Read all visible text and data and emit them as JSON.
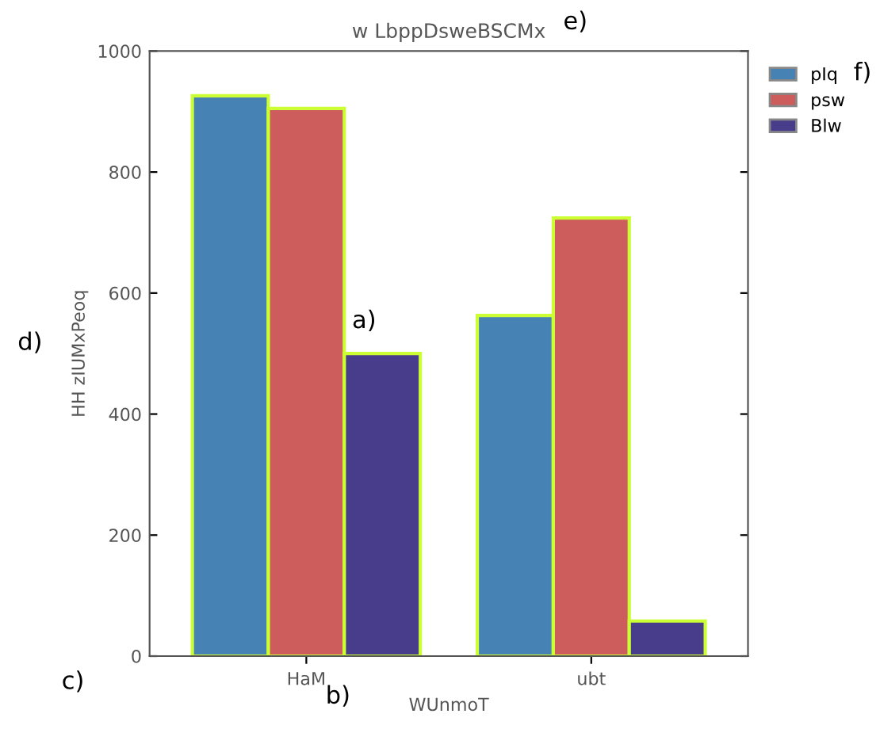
{
  "chart_data": {
    "type": "bar",
    "title": "w LbppDsweBSCMx",
    "xlabel": "WUnmoT",
    "ylabel": "HH zIUMxPeoq",
    "categories": [
      "HaM",
      "ubt"
    ],
    "series": [
      {
        "name": "pIq",
        "color": "#4682b4",
        "values": [
          926,
          563
        ]
      },
      {
        "name": "psw",
        "color": "#cd5c5c",
        "values": [
          905,
          724
        ]
      },
      {
        "name": "Blw",
        "color": "#483d8b",
        "values": [
          500,
          58
        ]
      }
    ],
    "ylim": [
      0,
      1000
    ],
    "yticks": [
      0,
      200,
      400,
      600,
      800,
      1000
    ],
    "legend": "top right",
    "grid": false,
    "annotations": [
      "a)",
      "b)",
      "c)",
      "d)",
      "e)",
      "f)"
    ]
  }
}
